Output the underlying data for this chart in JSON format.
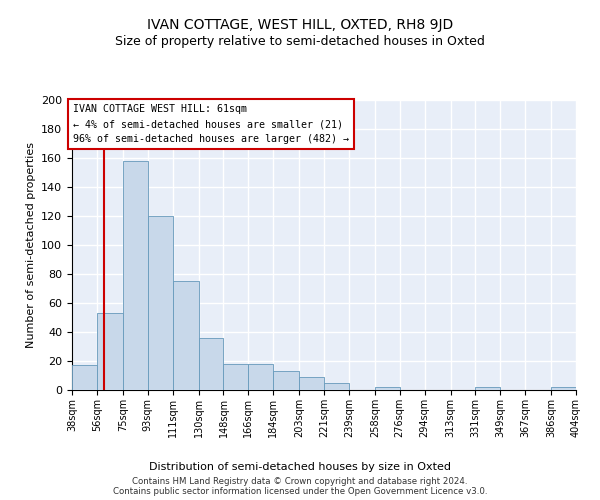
{
  "title": "IVAN COTTAGE, WEST HILL, OXTED, RH8 9JD",
  "subtitle": "Size of property relative to semi-detached houses in Oxted",
  "xlabel": "Distribution of semi-detached houses by size in Oxted",
  "ylabel": "Number of semi-detached properties",
  "bar_color": "#c8d8ea",
  "bar_edge_color": "#6699bb",
  "bg_color": "#e8eef8",
  "grid_color": "#ffffff",
  "bins": [
    38,
    56,
    75,
    93,
    111,
    130,
    148,
    166,
    184,
    203,
    221,
    239,
    258,
    276,
    294,
    313,
    331,
    349,
    367,
    386,
    404
  ],
  "values": [
    17,
    53,
    158,
    120,
    75,
    36,
    18,
    18,
    13,
    9,
    5,
    0,
    2,
    0,
    0,
    0,
    2,
    0,
    0,
    2,
    0
  ],
  "tick_labels": [
    "38sqm",
    "56sqm",
    "75sqm",
    "93sqm",
    "111sqm",
    "130sqm",
    "148sqm",
    "166sqm",
    "184sqm",
    "203sqm",
    "221sqm",
    "239sqm",
    "258sqm",
    "276sqm",
    "294sqm",
    "313sqm",
    "331sqm",
    "349sqm",
    "367sqm",
    "386sqm",
    "404sqm"
  ],
  "property_line_x": 61,
  "annotation_text": "IVAN COTTAGE WEST HILL: 61sqm\n← 4% of semi-detached houses are smaller (21)\n96% of semi-detached houses are larger (482) →",
  "annotation_box_color": "#ffffff",
  "annotation_border_color": "#cc0000",
  "ylim": [
    0,
    200
  ],
  "yticks": [
    0,
    20,
    40,
    60,
    80,
    100,
    120,
    140,
    160,
    180,
    200
  ],
  "footer": "Contains HM Land Registry data © Crown copyright and database right 2024.\nContains public sector information licensed under the Open Government Licence v3.0.",
  "vline_color": "#cc0000",
  "title_fontsize": 10,
  "subtitle_fontsize": 9
}
